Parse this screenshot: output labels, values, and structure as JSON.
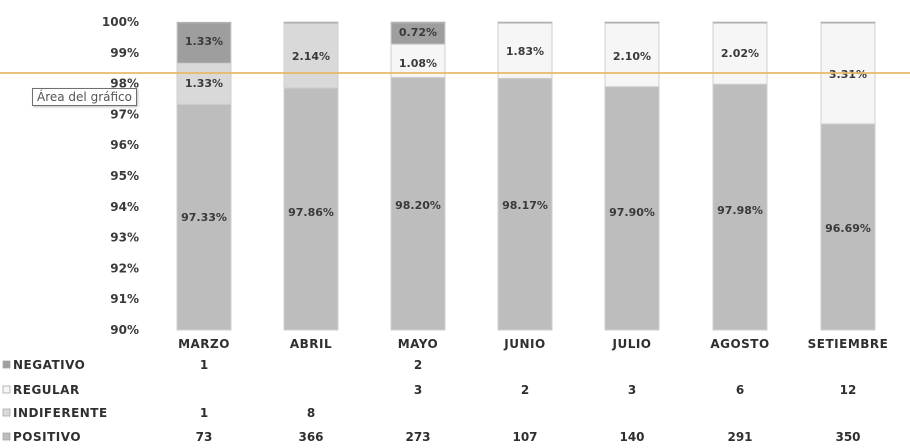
{
  "chart_data": {
    "type": "bar",
    "stacked": "100%",
    "categories": [
      "MARZO",
      "ABRIL",
      "MAYO",
      "JUNIO",
      "JULIO",
      "AGOSTO",
      "SETIEMBRE"
    ],
    "ylim": [
      90,
      100
    ],
    "ytick_labels": [
      "90%",
      "91%",
      "92%",
      "93%",
      "94%",
      "95%",
      "96%",
      "97%",
      "98%",
      "99%",
      "100%"
    ],
    "grid": false,
    "series": [
      {
        "name": "POSITIVO",
        "color": "#bdbdbd",
        "percent": [
          97.33,
          97.86,
          98.2,
          98.17,
          97.9,
          97.98,
          96.69
        ],
        "percent_labels": [
          "97.33%",
          "97.86%",
          "98.20%",
          "98.17%",
          "97.90%",
          "97.98%",
          "96.69%"
        ],
        "counts": [
          "73",
          "366",
          "273",
          "107",
          "140",
          "291",
          "350"
        ]
      },
      {
        "name": "INDIFERENTE",
        "color": "#d9d9d9",
        "percent": [
          1.33,
          2.14,
          0,
          0,
          0,
          0,
          0
        ],
        "percent_labels": [
          "1.33%",
          "2.14%",
          "",
          "",
          "",
          "",
          ""
        ],
        "counts": [
          "1",
          "8",
          "",
          "",
          "",
          "",
          ""
        ]
      },
      {
        "name": "REGULAR",
        "color": "#f6f6f6",
        "percent": [
          0,
          0,
          1.08,
          1.83,
          2.1,
          2.02,
          3.31
        ],
        "percent_labels": [
          "",
          "",
          "1.08%",
          "1.83%",
          "2.10%",
          "2.02%",
          "3.31%"
        ],
        "counts": [
          "",
          "",
          "3",
          "2",
          "3",
          "6",
          "12"
        ]
      },
      {
        "name": "NEGATIVO",
        "color": "#9e9e9e",
        "percent": [
          1.33,
          0,
          0.72,
          0,
          0,
          0,
          0
        ],
        "percent_labels": [
          "1.33%",
          "",
          "0.72%",
          "",
          "",
          "",
          ""
        ],
        "counts": [
          "1",
          "",
          "2",
          "",
          "",
          "",
          ""
        ]
      }
    ],
    "table_order": [
      "NEGATIVO",
      "REGULAR",
      "INDIFERENTE",
      "POSITIVO"
    ]
  },
  "tooltip": {
    "text": "Área del gráfico"
  }
}
